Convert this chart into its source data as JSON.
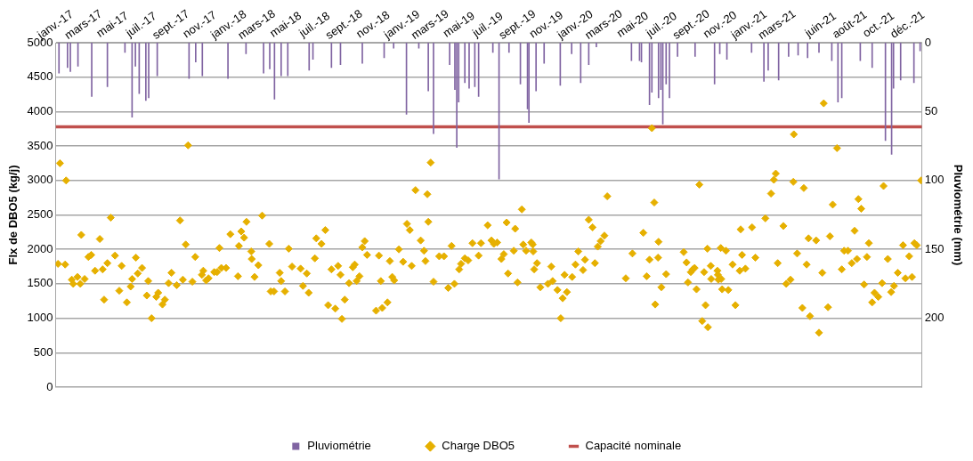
{
  "chart_data": {
    "type": "scatter",
    "ylabel": "Flx de DBO5 (kg/j)",
    "y2label": "Pluviométrie (mm)",
    "xlim": [
      "2017-01-01",
      "2021-12-31"
    ],
    "xticks": [
      {
        "value": "2017-01-01",
        "label": "janv.-17"
      },
      {
        "value": "2017-03-01",
        "label": "mars-17"
      },
      {
        "value": "2017-05-01",
        "label": "mai-17"
      },
      {
        "value": "2017-07-01",
        "label": "juil.-17"
      },
      {
        "value": "2017-09-01",
        "label": "sept.-17"
      },
      {
        "value": "2017-11-01",
        "label": "nov.-17"
      },
      {
        "value": "2018-01-01",
        "label": "janv.-18"
      },
      {
        "value": "2018-03-01",
        "label": "mars-18"
      },
      {
        "value": "2018-05-01",
        "label": "mai-18"
      },
      {
        "value": "2018-07-01",
        "label": "juil.-18"
      },
      {
        "value": "2018-09-01",
        "label": "sept.-18"
      },
      {
        "value": "2018-11-01",
        "label": "nov.-18"
      },
      {
        "value": "2019-01-01",
        "label": "janv.-19"
      },
      {
        "value": "2019-03-01",
        "label": "mars-19"
      },
      {
        "value": "2019-05-01",
        "label": "mai-19"
      },
      {
        "value": "2019-07-01",
        "label": "juil.-19"
      },
      {
        "value": "2019-09-01",
        "label": "sept.-19"
      },
      {
        "value": "2019-11-01",
        "label": "nov.-19"
      },
      {
        "value": "2020-01-01",
        "label": "janv.-20"
      },
      {
        "value": "2020-03-01",
        "label": "mars-20"
      },
      {
        "value": "2020-05-01",
        "label": "mai-20"
      },
      {
        "value": "2020-07-01",
        "label": "juil.-20"
      },
      {
        "value": "2020-09-01",
        "label": "sept.-20"
      },
      {
        "value": "2020-11-01",
        "label": "nov.-20"
      },
      {
        "value": "2021-01-01",
        "label": "janv.-21"
      },
      {
        "value": "2021-03-01",
        "label": "mars-21"
      },
      {
        "value": "2021-06-01",
        "label": "juin-21"
      },
      {
        "value": "2021-08-01",
        "label": "août-21"
      },
      {
        "value": "2021-10-01",
        "label": "oct.-21"
      },
      {
        "value": "2021-12-01",
        "label": "déc.-21"
      }
    ],
    "ylim": [
      0,
      5000
    ],
    "yticks": [
      0,
      500,
      1000,
      1500,
      2000,
      2500,
      3000,
      3500,
      4000,
      4500,
      5000
    ],
    "y2lim": [
      250,
      0
    ],
    "y2ticks": [
      0,
      50,
      100,
      150,
      200
    ],
    "grid": "y",
    "legend": "bottom",
    "marker": "diamond",
    "ref_lines": [
      {
        "axis": "y",
        "value": 3780,
        "label": "Capacité nominale",
        "color": "#c0504d"
      }
    ],
    "series": [
      {
        "name": "Pluviométrie",
        "type": "bar",
        "axis": "y2",
        "color": "#8064a2",
        "x": [
          "2017-01-08",
          "2017-01-26",
          "2017-02-01",
          "2017-02-17",
          "2017-03-18",
          "2017-04-20",
          "2017-05-27",
          "2017-06-11",
          "2017-06-18",
          "2017-06-26",
          "2017-07-10",
          "2017-07-16",
          "2017-08-03",
          "2017-10-09",
          "2017-10-23",
          "2017-11-06",
          "2017-12-30",
          "2018-02-06",
          "2018-03-15",
          "2018-03-28",
          "2018-04-07",
          "2018-04-21",
          "2018-05-05",
          "2018-06-19",
          "2018-06-27",
          "2018-08-05",
          "2018-08-24",
          "2018-10-09",
          "2018-11-24",
          "2018-12-14",
          "2019-01-10",
          "2019-02-05",
          "2019-02-25",
          "2019-03-08",
          "2019-04-11",
          "2019-04-22",
          "2019-04-26",
          "2019-04-30",
          "2019-05-13",
          "2019-05-22",
          "2019-06-03",
          "2019-06-11",
          "2019-07-11",
          "2019-07-24",
          "2019-08-14",
          "2019-09-07",
          "2019-09-22",
          "2019-09-25",
          "2019-10-10",
          "2019-10-27",
          "2019-11-30",
          "2019-12-24",
          "2020-01-12",
          "2020-01-29",
          "2020-02-14",
          "2020-04-28",
          "2020-05-15",
          "2020-05-19",
          "2020-06-05",
          "2020-06-10",
          "2020-06-24",
          "2020-06-29",
          "2020-07-03",
          "2020-07-10",
          "2020-07-17",
          "2020-08-03",
          "2020-09-09",
          "2020-10-20",
          "2020-10-31",
          "2020-11-15",
          "2021-01-06",
          "2021-02-01",
          "2021-02-10",
          "2021-03-04",
          "2021-03-25",
          "2021-04-14",
          "2021-05-04",
          "2021-05-28",
          "2021-06-24",
          "2021-07-07",
          "2021-07-15",
          "2021-08-23",
          "2021-09-17",
          "2021-10-15",
          "2021-10-28",
          "2021-11-01",
          "2021-11-16",
          "2021-12-14",
          "2021-12-27"
        ],
        "values": [
          22,
          18,
          21,
          17,
          39,
          32,
          7,
          54,
          17,
          37,
          42,
          40,
          24,
          26,
          14,
          24,
          26,
          8,
          22,
          19,
          41,
          24,
          24,
          20,
          12,
          18,
          16,
          15,
          11,
          4,
          52,
          4,
          35,
          66,
          16,
          34,
          76,
          43,
          29,
          33,
          32,
          39,
          7,
          99,
          7,
          30,
          48,
          58,
          35,
          15,
          31,
          8,
          29,
          16,
          3,
          13,
          13,
          14,
          45,
          36,
          40,
          34,
          59,
          30,
          40,
          10,
          10,
          30,
          8,
          12,
          7,
          28,
          20,
          27,
          10,
          9,
          11,
          7,
          13,
          43,
          40,
          13,
          18,
          71,
          81,
          33,
          27,
          29,
          6
        ]
      },
      {
        "name": "Charge DBO5",
        "color": "#e6b000",
        "x": [
          "2017-01-06",
          "2017-01-10",
          "2017-01-21",
          "2017-01-23",
          "2017-02-04",
          "2017-02-07",
          "2017-02-16",
          "2017-02-22",
          "2017-02-24",
          "2017-03-03",
          "2017-03-11",
          "2017-03-17",
          "2017-03-25",
          "2017-04-04",
          "2017-04-10",
          "2017-04-13",
          "2017-04-20",
          "2017-04-27",
          "2017-05-06",
          "2017-05-15",
          "2017-05-20",
          "2017-05-31",
          "2017-06-08",
          "2017-06-11",
          "2017-06-19",
          "2017-06-23",
          "2017-07-02",
          "2017-07-12",
          "2017-07-15",
          "2017-07-22",
          "2017-08-01",
          "2017-08-05",
          "2017-08-14",
          "2017-08-19",
          "2017-08-27",
          "2017-09-02",
          "2017-09-13",
          "2017-09-20",
          "2017-09-26",
          "2017-10-02",
          "2017-10-07",
          "2017-10-16",
          "2017-10-22",
          "2017-11-05",
          "2017-11-08",
          "2017-11-14",
          "2017-11-19",
          "2017-12-01",
          "2017-12-07",
          "2017-12-12",
          "2017-12-16",
          "2017-12-26",
          "2018-01-04",
          "2018-01-20",
          "2018-01-22",
          "2018-01-27",
          "2018-02-02",
          "2018-02-07",
          "2018-02-17",
          "2018-02-18",
          "2018-02-24",
          "2018-03-04",
          "2018-03-12",
          "2018-03-27",
          "2018-03-30",
          "2018-04-06",
          "2018-04-18",
          "2018-04-21",
          "2018-04-29",
          "2018-05-07",
          "2018-05-14",
          "2018-06-01",
          "2018-06-06",
          "2018-06-14",
          "2018-06-18",
          "2018-07-01",
          "2018-07-04",
          "2018-07-15",
          "2018-07-23",
          "2018-07-29",
          "2018-08-05",
          "2018-08-13",
          "2018-08-19",
          "2018-08-24",
          "2018-08-27",
          "2018-09-02",
          "2018-09-11",
          "2018-09-19",
          "2018-09-23",
          "2018-09-27",
          "2018-10-03",
          "2018-10-09",
          "2018-10-14",
          "2018-10-19",
          "2018-11-07",
          "2018-11-13",
          "2018-11-17",
          "2018-11-20",
          "2018-12-01",
          "2018-12-06",
          "2018-12-11",
          "2018-12-15",
          "2018-12-25",
          "2019-01-03",
          "2019-01-11",
          "2019-01-17",
          "2019-01-21",
          "2019-01-29",
          "2019-02-09",
          "2019-02-16",
          "2019-02-19",
          "2019-02-23",
          "2019-02-25",
          "2019-03-02",
          "2019-03-08",
          "2019-03-20",
          "2019-03-30",
          "2019-04-08",
          "2019-04-15",
          "2019-04-21",
          "2019-05-01",
          "2019-05-05",
          "2019-05-13",
          "2019-05-20",
          "2019-05-29",
          "2019-06-11",
          "2019-06-16",
          "2019-06-30",
          "2019-07-08",
          "2019-07-13",
          "2019-07-20",
          "2019-07-29",
          "2019-08-03",
          "2019-08-09",
          "2019-08-12",
          "2019-08-24",
          "2019-08-27",
          "2019-09-01",
          "2019-09-10",
          "2019-09-13",
          "2019-09-19",
          "2019-09-30",
          "2019-10-03",
          "2019-10-04",
          "2019-10-06",
          "2019-10-12",
          "2019-10-19",
          "2019-11-04",
          "2019-11-11",
          "2019-11-14",
          "2019-11-24",
          "2019-12-01",
          "2019-12-05",
          "2019-12-09",
          "2019-12-14",
          "2019-12-25",
          "2020-01-01",
          "2020-01-07",
          "2020-01-17",
          "2020-01-21",
          "2020-01-29",
          "2020-02-06",
          "2020-02-11",
          "2020-02-17",
          "2020-02-23",
          "2020-03-02",
          "2020-03-08",
          "2020-04-16",
          "2020-04-30",
          "2020-05-23",
          "2020-05-30",
          "2020-06-05",
          "2020-06-10",
          "2020-06-15",
          "2020-06-17",
          "2020-06-23",
          "2020-06-24",
          "2020-06-30",
          "2020-07-10",
          "2020-08-16",
          "2020-08-22",
          "2020-08-25",
          "2020-08-31",
          "2020-09-04",
          "2020-09-08",
          "2020-09-12",
          "2020-09-18",
          "2020-09-24",
          "2020-09-28",
          "2020-10-01",
          "2020-10-05",
          "2020-10-06",
          "2020-10-12",
          "2020-10-13",
          "2020-10-26",
          "2020-10-27",
          "2020-10-28",
          "2020-11-02",
          "2020-11-03",
          "2020-11-05",
          "2020-11-13",
          "2020-11-18",
          "2020-11-27",
          "2020-12-03",
          "2020-12-12",
          "2020-12-14",
          "2020-12-17",
          "2020-12-24",
          "2021-01-07",
          "2021-01-14",
          "2021-02-04",
          "2021-02-16",
          "2021-02-22",
          "2021-02-26",
          "2021-03-02",
          "2021-03-14",
          "2021-03-20",
          "2021-03-29",
          "2021-04-04",
          "2021-04-05",
          "2021-04-12",
          "2021-04-23",
          "2021-04-26",
          "2021-05-02",
          "2021-05-06",
          "2021-05-09",
          "2021-05-22",
          "2021-05-28",
          "2021-06-04",
          "2021-06-07",
          "2021-06-16",
          "2021-06-20",
          "2021-06-26",
          "2021-07-05",
          "2021-07-15",
          "2021-07-20",
          "2021-07-28",
          "2021-08-05",
          "2021-08-11",
          "2021-08-16",
          "2021-08-19",
          "2021-08-25",
          "2021-08-31",
          "2021-09-06",
          "2021-09-10",
          "2021-09-17",
          "2021-09-22",
          "2021-09-30",
          "2021-10-08",
          "2021-10-11",
          "2021-10-20",
          "2021-10-27",
          "2021-11-02",
          "2021-11-10",
          "2021-11-21",
          "2021-11-26",
          "2021-12-04",
          "2021-12-10",
          "2021-12-15",
          "2021-12-20",
          "2021-12-29"
        ],
        "values": [
          1790,
          3250,
          1780,
          3000,
          1560,
          1500,
          1600,
          1500,
          2210,
          1570,
          1890,
          1920,
          1690,
          2150,
          1710,
          1270,
          1800,
          2460,
          1910,
          1400,
          1760,
          1230,
          1460,
          1570,
          1880,
          1650,
          1730,
          1330,
          1540,
          1000,
          1310,
          1370,
          1200,
          1270,
          1510,
          1660,
          1480,
          2420,
          1560,
          2070,
          3510,
          1530,
          1890,
          1630,
          1690,
          1550,
          1580,
          1670,
          1670,
          2020,
          1730,
          1730,
          2220,
          1610,
          2050,
          2260,
          2170,
          2400,
          1970,
          1860,
          1600,
          1770,
          2490,
          2080,
          1390,
          1390,
          1660,
          1540,
          1390,
          2010,
          1750,
          1720,
          1470,
          1650,
          1370,
          1870,
          2160,
          2080,
          2280,
          1190,
          1710,
          1140,
          1760,
          1630,
          990,
          1270,
          1510,
          1740,
          1780,
          1540,
          1610,
          2030,
          2120,
          1920,
          1110,
          1910,
          1540,
          1150,
          1230,
          1830,
          1600,
          1550,
          2000,
          1820,
          2370,
          2280,
          1760,
          2860,
          2130,
          1980,
          1830,
          2800,
          2400,
          3260,
          1530,
          1900,
          1900,
          1440,
          2050,
          1500,
          1710,
          1790,
          1870,
          1840,
          2090,
          1910,
          2090,
          2350,
          2130,
          2080,
          2100,
          1860,
          1930,
          2390,
          1650,
          1980,
          2300,
          1520,
          2580,
          2070,
          1980,
          2100,
          2070,
          1970,
          1710,
          1800,
          1450,
          1500,
          1750,
          1540,
          1410,
          1000,
          1290,
          1630,
          1380,
          1600,
          1780,
          1970,
          1700,
          1850,
          2430,
          2320,
          1800,
          2040,
          2120,
          2200,
          2770,
          1580,
          1940,
          2240,
          1610,
          1850,
          3760,
          2680,
          1200,
          1880,
          2110,
          1450,
          1640,
          1960,
          1810,
          1520,
          1670,
          1710,
          1730,
          1420,
          2940,
          960,
          1670,
          1190,
          2010,
          870,
          1760,
          1570,
          1690,
          1630,
          1560,
          2020,
          1570,
          1420,
          1980,
          1410,
          1780,
          1190,
          1690,
          2290,
          1920,
          1720,
          2320,
          1880,
          2450,
          2810,
          3010,
          3100,
          1800,
          2340,
          1500,
          1560,
          2980,
          3670,
          1940,
          1150,
          2890,
          1780,
          2160,
          1030,
          2130,
          790,
          1660,
          4120,
          1160,
          2190,
          2650,
          3470,
          1710,
          1980,
          1980,
          1800,
          2270,
          1860,
          2730,
          2590,
          1490,
          1890,
          2090,
          1230,
          1370,
          1310,
          1510,
          2920,
          1860,
          1380,
          1470,
          1660,
          2060,
          1580,
          1900,
          1600,
          2090,
          2060,
          3000
        ]
      }
    ]
  }
}
